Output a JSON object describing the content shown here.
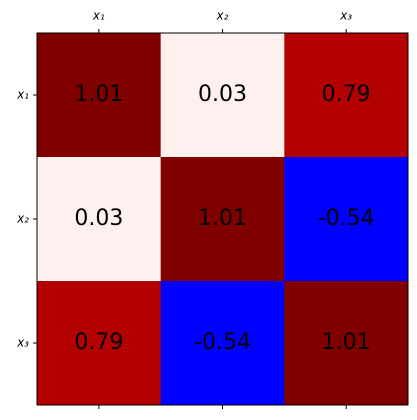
{
  "chart_data": {
    "type": "heatmap",
    "x_categories": [
      "x₁",
      "x₂",
      "x₃"
    ],
    "y_categories": [
      "x₁",
      "x₂",
      "x₃"
    ],
    "values": [
      [
        1.01,
        0.03,
        0.79
      ],
      [
        0.03,
        1.01,
        -0.54
      ],
      [
        0.79,
        -0.54,
        1.01
      ]
    ],
    "colors": [
      [
        "#800000",
        "#fff0f0",
        "#b30000"
      ],
      [
        "#fff0f0",
        "#800000",
        "#0000ff"
      ],
      [
        "#b30000",
        "#0000ff",
        "#800000"
      ]
    ],
    "text_color": "#000000"
  }
}
